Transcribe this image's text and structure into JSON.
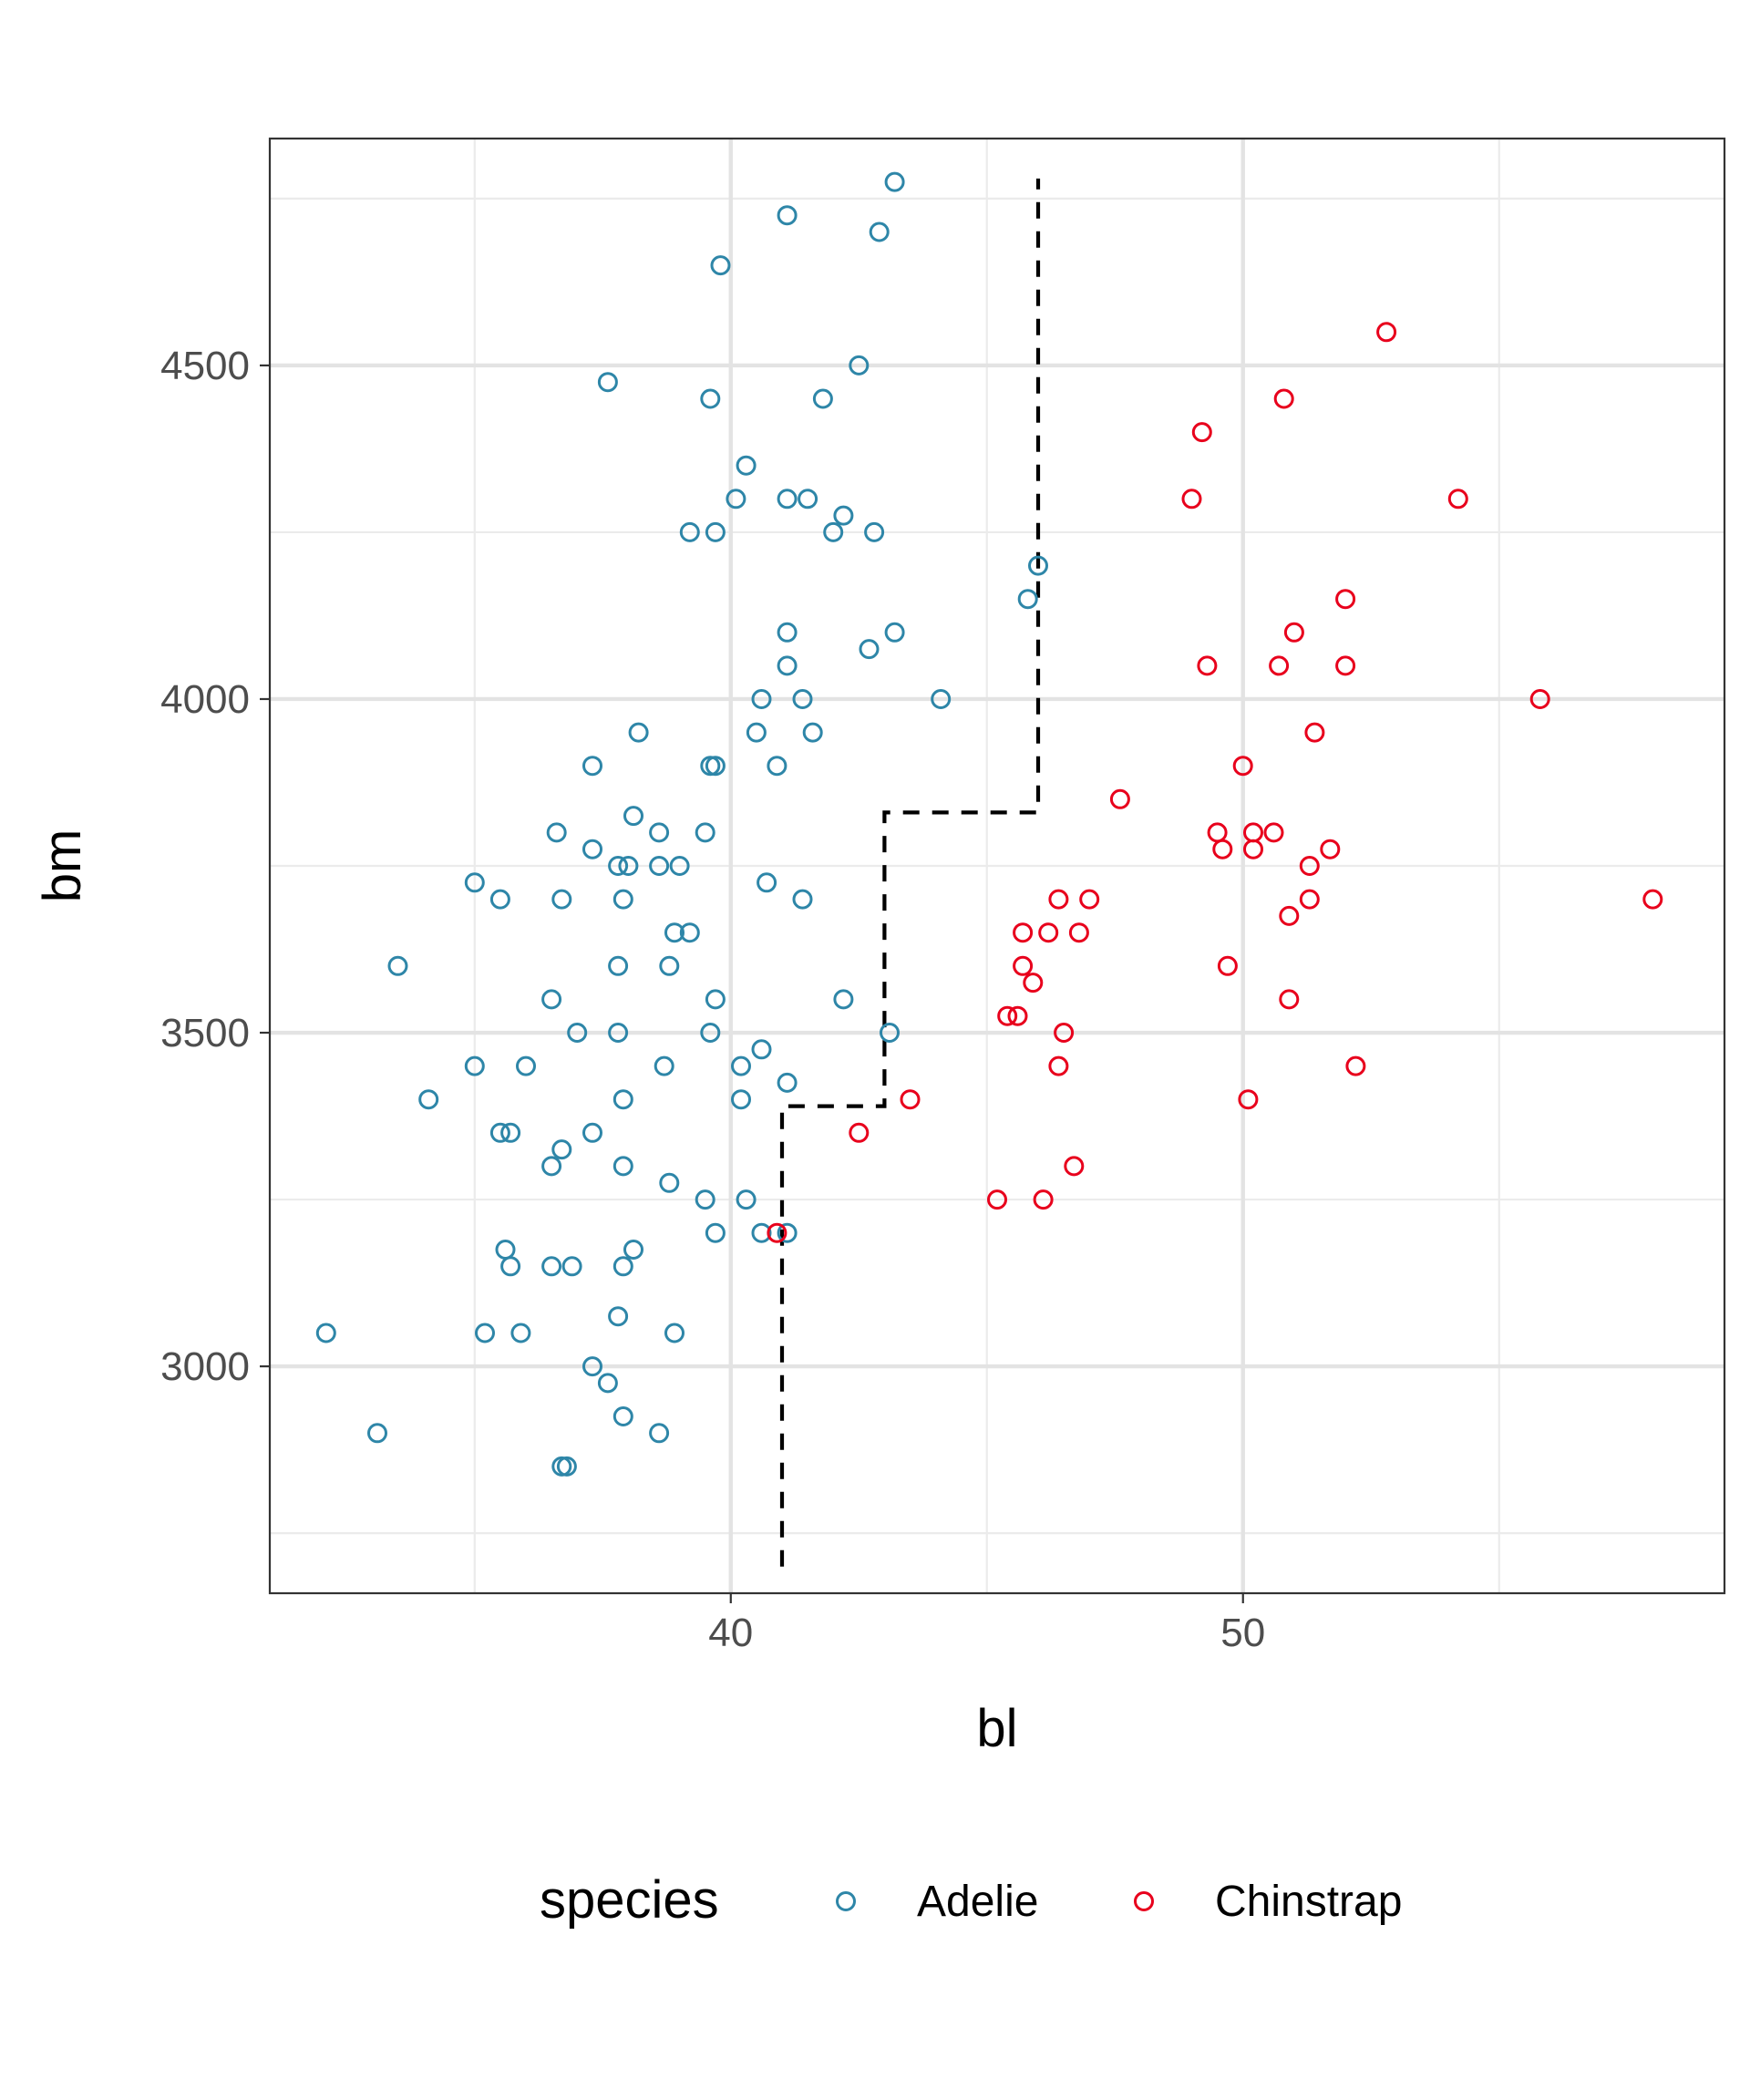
{
  "chart_data": {
    "type": "scatter",
    "title": "",
    "xlabel": "bl",
    "ylabel": "bm",
    "xlim": [
      31.0,
      59.4
    ],
    "ylim": [
      2660,
      4840
    ],
    "x_ticks": [
      40,
      50
    ],
    "x_tick_labels": [
      "40",
      "50"
    ],
    "x_minor_ticks": [
      35,
      45,
      55
    ],
    "y_ticks": [
      3000,
      3500,
      4000,
      4500
    ],
    "y_tick_labels": [
      "3000",
      "3500",
      "4000",
      "4500"
    ],
    "y_minor_ticks": [
      2750,
      3250,
      3750,
      4250,
      4750
    ],
    "grid": true,
    "legend": {
      "title": "species",
      "position": "bottom"
    },
    "series": [
      {
        "name": "Adelie",
        "color": "#2E86A8",
        "marker": "open-circle",
        "points": [
          [
            43.2,
            4775
          ],
          [
            41.1,
            4725
          ],
          [
            42.9,
            4700
          ],
          [
            39.8,
            4650
          ],
          [
            42.5,
            4500
          ],
          [
            37.6,
            4475
          ],
          [
            39.6,
            4450
          ],
          [
            41.8,
            4450
          ],
          [
            40.3,
            4350
          ],
          [
            40.1,
            4300
          ],
          [
            41.1,
            4300
          ],
          [
            41.5,
            4300
          ],
          [
            42.2,
            4275
          ],
          [
            39.2,
            4250
          ],
          [
            39.7,
            4250
          ],
          [
            42.0,
            4250
          ],
          [
            42.8,
            4250
          ],
          [
            46.0,
            4200
          ],
          [
            45.8,
            4150
          ],
          [
            41.1,
            4100
          ],
          [
            43.2,
            4100
          ],
          [
            42.7,
            4075
          ],
          [
            41.1,
            4050
          ],
          [
            40.6,
            4000
          ],
          [
            41.4,
            4000
          ],
          [
            44.1,
            4000
          ],
          [
            38.2,
            3950
          ],
          [
            40.5,
            3950
          ],
          [
            41.6,
            3950
          ],
          [
            37.3,
            3900
          ],
          [
            39.6,
            3900
          ],
          [
            39.7,
            3900
          ],
          [
            40.9,
            3900
          ],
          [
            38.1,
            3825
          ],
          [
            36.6,
            3800
          ],
          [
            38.6,
            3800
          ],
          [
            39.5,
            3800
          ],
          [
            37.3,
            3775
          ],
          [
            37.8,
            3750
          ],
          [
            38.6,
            3750
          ],
          [
            39.0,
            3750
          ],
          [
            38.0,
            3750
          ],
          [
            35.0,
            3725
          ],
          [
            40.7,
            3725
          ],
          [
            35.5,
            3700
          ],
          [
            36.7,
            3700
          ],
          [
            37.9,
            3700
          ],
          [
            41.4,
            3700
          ],
          [
            38.9,
            3650
          ],
          [
            39.2,
            3650
          ],
          [
            33.5,
            3600
          ],
          [
            37.8,
            3600
          ],
          [
            38.8,
            3600
          ],
          [
            36.5,
            3550
          ],
          [
            39.7,
            3550
          ],
          [
            42.2,
            3550
          ],
          [
            37.0,
            3500
          ],
          [
            37.8,
            3500
          ],
          [
            39.6,
            3500
          ],
          [
            43.1,
            3500
          ],
          [
            40.6,
            3475
          ],
          [
            35.0,
            3450
          ],
          [
            36.0,
            3450
          ],
          [
            38.7,
            3450
          ],
          [
            40.2,
            3450
          ],
          [
            41.1,
            3425
          ],
          [
            34.1,
            3400
          ],
          [
            37.9,
            3400
          ],
          [
            40.2,
            3400
          ],
          [
            35.5,
            3350
          ],
          [
            35.7,
            3350
          ],
          [
            37.3,
            3350
          ],
          [
            36.7,
            3325
          ],
          [
            36.5,
            3300
          ],
          [
            37.9,
            3300
          ],
          [
            38.8,
            3275
          ],
          [
            39.5,
            3250
          ],
          [
            40.3,
            3250
          ],
          [
            39.7,
            3200
          ],
          [
            40.6,
            3200
          ],
          [
            41.1,
            3200
          ],
          [
            35.6,
            3175
          ],
          [
            38.1,
            3175
          ],
          [
            35.7,
            3150
          ],
          [
            36.5,
            3150
          ],
          [
            36.9,
            3150
          ],
          [
            37.9,
            3150
          ],
          [
            37.8,
            3075
          ],
          [
            32.1,
            3050
          ],
          [
            35.2,
            3050
          ],
          [
            35.9,
            3050
          ],
          [
            38.9,
            3050
          ],
          [
            37.3,
            3000
          ],
          [
            37.6,
            2975
          ],
          [
            37.9,
            2925
          ],
          [
            33.1,
            2900
          ],
          [
            38.6,
            2900
          ],
          [
            36.7,
            2850
          ],
          [
            36.8,
            2850
          ]
        ]
      },
      {
        "name": "Chinstrap",
        "color": "#E8001C",
        "marker": "open-circle",
        "points": [
          [
            52.8,
            4550
          ],
          [
            50.8,
            4450
          ],
          [
            49.2,
            4400
          ],
          [
            49.0,
            4300
          ],
          [
            54.2,
            4300
          ],
          [
            52.0,
            4150
          ],
          [
            51.0,
            4100
          ],
          [
            49.3,
            4050
          ],
          [
            50.7,
            4050
          ],
          [
            52.0,
            4050
          ],
          [
            55.8,
            4000
          ],
          [
            51.4,
            3950
          ],
          [
            50.0,
            3900
          ],
          [
            47.6,
            3850
          ],
          [
            49.5,
            3800
          ],
          [
            50.2,
            3800
          ],
          [
            50.6,
            3800
          ],
          [
            49.6,
            3775
          ],
          [
            50.2,
            3775
          ],
          [
            51.7,
            3775
          ],
          [
            51.3,
            3750
          ],
          [
            46.4,
            3700
          ],
          [
            47.0,
            3700
          ],
          [
            51.3,
            3700
          ],
          [
            58.0,
            3700
          ],
          [
            50.9,
            3675
          ],
          [
            45.7,
            3650
          ],
          [
            46.2,
            3650
          ],
          [
            46.8,
            3650
          ],
          [
            45.7,
            3600
          ],
          [
            49.7,
            3600
          ],
          [
            45.9,
            3575
          ],
          [
            45.4,
            3525
          ],
          [
            45.6,
            3525
          ],
          [
            50.9,
            3550
          ],
          [
            46.5,
            3500
          ],
          [
            46.4,
            3450
          ],
          [
            52.2,
            3450
          ],
          [
            43.5,
            3400
          ],
          [
            50.1,
            3400
          ],
          [
            42.5,
            3350
          ],
          [
            46.7,
            3300
          ],
          [
            45.2,
            3250
          ],
          [
            46.1,
            3250
          ],
          [
            40.9,
            3200
          ]
        ]
      }
    ],
    "annotations": [
      {
        "type": "step-line",
        "style": "dashed",
        "color": "#000000",
        "points": [
          [
            41.0,
            2700
          ],
          [
            41.0,
            3390
          ],
          [
            43.0,
            3390
          ],
          [
            43.0,
            3830
          ],
          [
            46.0,
            3830
          ],
          [
            46.0,
            4780
          ]
        ]
      }
    ]
  }
}
